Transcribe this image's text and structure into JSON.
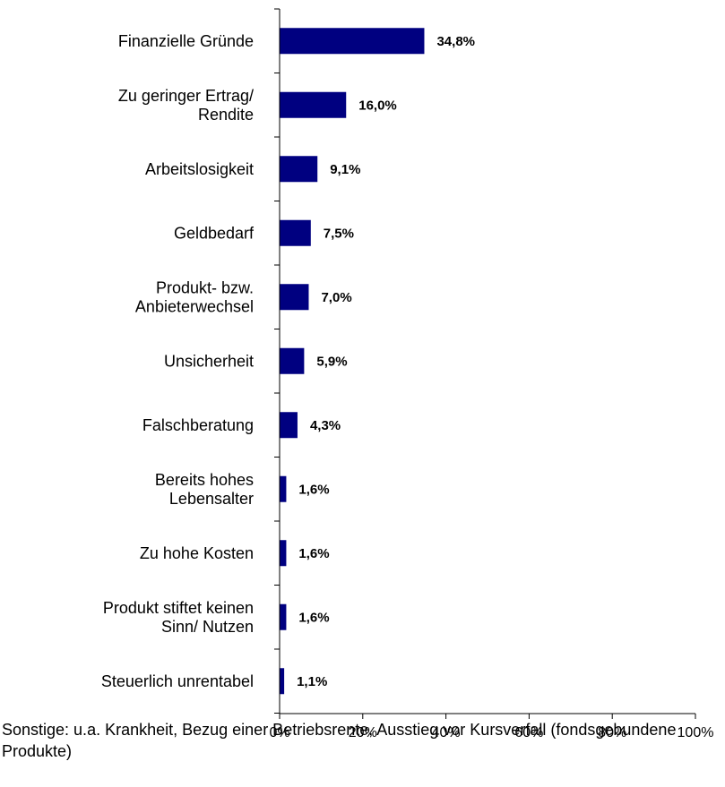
{
  "chart_data": {
    "type": "bar",
    "orientation": "horizontal",
    "title": "",
    "xlabel": "",
    "ylabel": "",
    "xlim": [
      0,
      100
    ],
    "x_ticks": [
      "0%",
      "20%",
      "40%",
      "60%",
      "80%",
      "100%"
    ],
    "x_tick_values": [
      0,
      20,
      40,
      60,
      80,
      100
    ],
    "grid": false,
    "bar_color": "#000080",
    "categories": [
      [
        "Finanzielle Gründe"
      ],
      [
        "Zu geringer Ertrag/",
        "Rendite"
      ],
      [
        "Arbeitslosigkeit"
      ],
      [
        "Geldbedarf"
      ],
      [
        "Produkt- bzw.",
        "Anbieterwechsel"
      ],
      [
        "Unsicherheit"
      ],
      [
        "Falschberatung"
      ],
      [
        "Bereits hohes",
        "Lebensalter"
      ],
      [
        "Zu hohe Kosten"
      ],
      [
        "Produkt stiftet keinen",
        "Sinn/ Nutzen"
      ],
      [
        "Steuerlich unrentabel"
      ]
    ],
    "values": [
      34.8,
      16.0,
      9.1,
      7.5,
      7.0,
      5.9,
      4.3,
      1.6,
      1.6,
      1.6,
      1.1
    ],
    "value_labels": [
      "34,8%",
      "16,0%",
      "9,1%",
      "7,5%",
      "7,0%",
      "5,9%",
      "4,3%",
      "1,6%",
      "1,6%",
      "1,6%",
      "1,1%"
    ]
  },
  "footnote": "Sonstige: u.a. Krankheit, Bezug einer Betriebsrente, Ausstieg vor Kursverfall (fondsgebundene Produkte)"
}
